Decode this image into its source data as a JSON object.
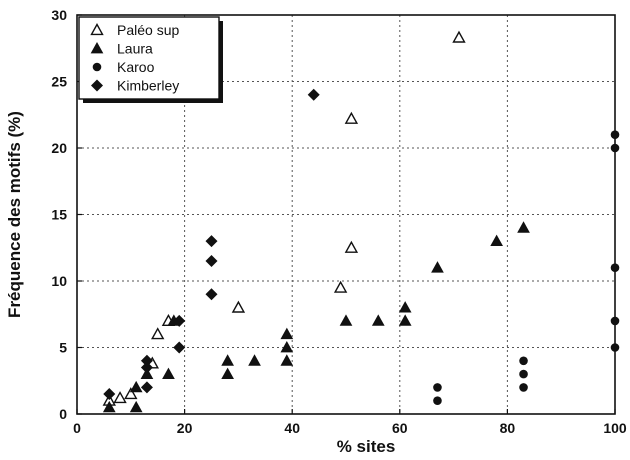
{
  "chart_data": {
    "type": "scatter",
    "title": "",
    "xlabel": "% sites",
    "ylabel": "Fréquence des motifs (%)",
    "xlim": [
      0,
      100
    ],
    "ylim": [
      0,
      30
    ],
    "xticks": [
      0,
      20,
      40,
      60,
      80,
      100
    ],
    "yticks": [
      0,
      5,
      10,
      15,
      20,
      25,
      30
    ],
    "xtick_labels": [
      "0",
      "20",
      "40",
      "60",
      "80",
      "100"
    ],
    "ytick_labels": [
      "0",
      "5",
      "10",
      "15",
      "20",
      "25",
      "30"
    ],
    "grid": true,
    "legend_position": "top-left",
    "series": [
      {
        "name": "Paléo sup",
        "marker": "triangle-open",
        "points": [
          [
            6,
            1.0
          ],
          [
            8,
            1.2
          ],
          [
            10,
            1.5
          ],
          [
            14,
            3.8
          ],
          [
            15,
            6.0
          ],
          [
            17,
            7.0
          ],
          [
            30,
            8.0
          ],
          [
            49,
            9.5
          ],
          [
            51,
            12.5
          ],
          [
            51,
            22.2
          ],
          [
            71,
            28.3
          ]
        ]
      },
      {
        "name": "Laura",
        "marker": "triangle-filled",
        "points": [
          [
            6,
            0.5
          ],
          [
            11,
            0.5
          ],
          [
            11,
            2.0
          ],
          [
            13,
            3.0
          ],
          [
            17,
            3.0
          ],
          [
            18,
            7.0
          ],
          [
            28,
            3.0
          ],
          [
            28,
            4.0
          ],
          [
            33,
            4.0
          ],
          [
            39,
            4.0
          ],
          [
            39,
            5.0
          ],
          [
            39,
            6.0
          ],
          [
            50,
            7.0
          ],
          [
            56,
            7.0
          ],
          [
            61,
            7.0
          ],
          [
            61,
            8.0
          ],
          [
            67,
            11.0
          ],
          [
            78,
            13.0
          ],
          [
            83,
            14.0
          ]
        ]
      },
      {
        "name": "Karoo",
        "marker": "circle-filled",
        "points": [
          [
            67,
            1.0
          ],
          [
            67,
            2.0
          ],
          [
            83,
            2.0
          ],
          [
            83,
            3.0
          ],
          [
            83,
            4.0
          ],
          [
            100,
            5.0
          ],
          [
            100,
            7.0
          ],
          [
            100,
            11.0
          ],
          [
            100,
            20.0
          ],
          [
            100,
            21.0
          ]
        ]
      },
      {
        "name": "Kimberley",
        "marker": "diamond-filled",
        "points": [
          [
            6,
            1.5
          ],
          [
            13,
            2.0
          ],
          [
            13,
            3.5
          ],
          [
            13,
            4.0
          ],
          [
            19,
            5.0
          ],
          [
            19,
            7.0
          ],
          [
            25,
            9.0
          ],
          [
            25,
            11.5
          ],
          [
            25,
            13.0
          ],
          [
            44,
            24.0
          ]
        ]
      }
    ]
  }
}
